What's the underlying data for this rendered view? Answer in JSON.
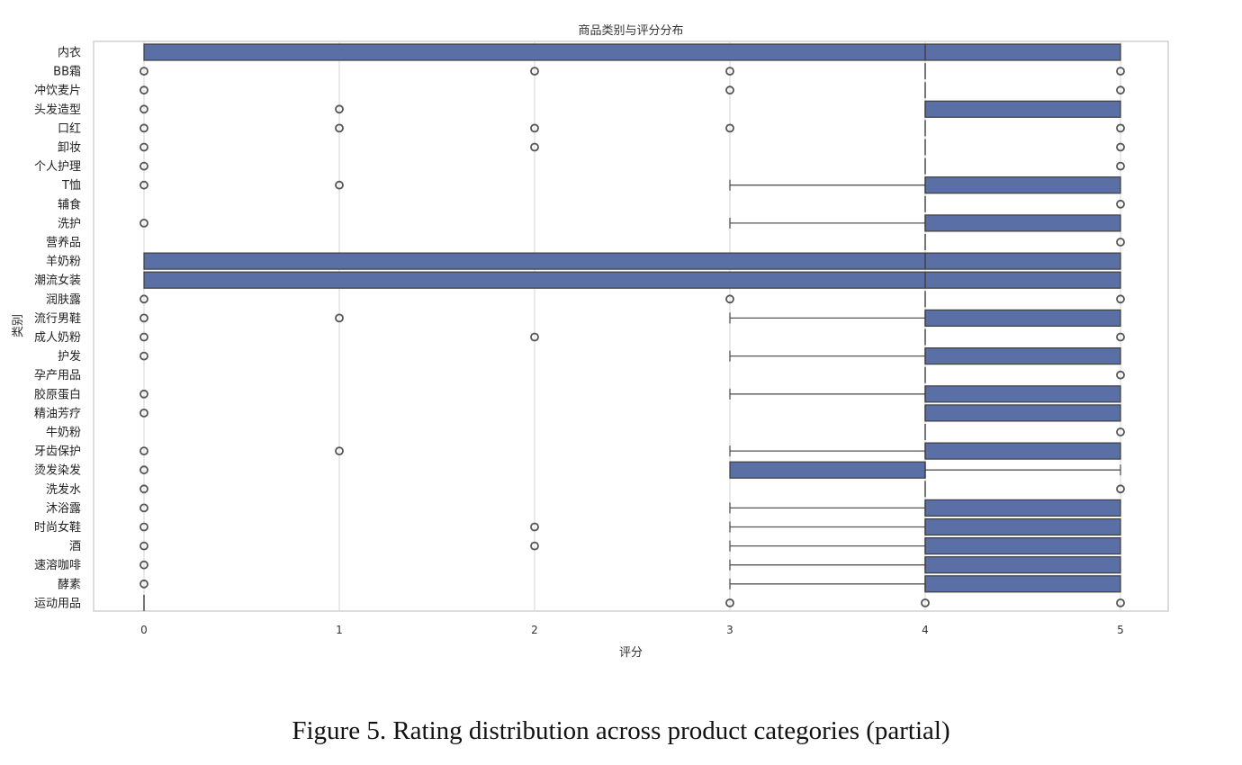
{
  "caption": "Figure 5. Rating distribution across product categories (partial)",
  "chart_data": {
    "type": "box",
    "orientation": "horizontal",
    "title": "商品类别与评分分布",
    "xlabel": "评分",
    "ylabel": "类别",
    "xlim": [
      -0.25,
      5.25
    ],
    "xticks": [
      0,
      1,
      2,
      3,
      4,
      5
    ],
    "grid": "vertical",
    "box_color": "#5a6fa6",
    "categories": [
      {
        "name": "内衣",
        "q1": 0,
        "median": 4,
        "q3": 5,
        "whisker_low": 0,
        "whisker_high": 5,
        "outliers": []
      },
      {
        "name": "BB霜",
        "q1": 4,
        "median": 4,
        "q3": 4,
        "whisker_low": 4,
        "whisker_high": 4,
        "outliers": [
          0,
          2,
          3,
          5
        ]
      },
      {
        "name": "冲饮麦片",
        "q1": 4,
        "median": 4,
        "q3": 4,
        "whisker_low": 4,
        "whisker_high": 4,
        "outliers": [
          0,
          3,
          5
        ]
      },
      {
        "name": "头发造型",
        "q1": 4,
        "median": 4,
        "q3": 5,
        "whisker_low": 4,
        "whisker_high": 5,
        "outliers": [
          0,
          1
        ]
      },
      {
        "name": "口红",
        "q1": 4,
        "median": 4,
        "q3": 4,
        "whisker_low": 4,
        "whisker_high": 4,
        "outliers": [
          0,
          1,
          2,
          3,
          5
        ]
      },
      {
        "name": "卸妆",
        "q1": 4,
        "median": 4,
        "q3": 4,
        "whisker_low": 4,
        "whisker_high": 4,
        "outliers": [
          0,
          2,
          5
        ]
      },
      {
        "name": "个人护理",
        "q1": 4,
        "median": 4,
        "q3": 4,
        "whisker_low": 4,
        "whisker_high": 4,
        "outliers": [
          0,
          5
        ]
      },
      {
        "name": "T恤",
        "q1": 4,
        "median": 4,
        "q3": 5,
        "whisker_low": 3,
        "whisker_high": 5,
        "outliers": [
          0,
          1
        ]
      },
      {
        "name": "辅食",
        "q1": 4,
        "median": 4,
        "q3": 4,
        "whisker_low": 4,
        "whisker_high": 4,
        "outliers": [
          5
        ]
      },
      {
        "name": "洗护",
        "q1": 4,
        "median": 4,
        "q3": 5,
        "whisker_low": 3,
        "whisker_high": 5,
        "outliers": [
          0
        ]
      },
      {
        "name": "营养品",
        "q1": 4,
        "median": 4,
        "q3": 4,
        "whisker_low": 4,
        "whisker_high": 4,
        "outliers": [
          5
        ]
      },
      {
        "name": "羊奶粉",
        "q1": 0,
        "median": 4,
        "q3": 5,
        "whisker_low": 0,
        "whisker_high": 5,
        "outliers": []
      },
      {
        "name": "潮流女装",
        "q1": 0,
        "median": 4,
        "q3": 5,
        "whisker_low": 0,
        "whisker_high": 5,
        "outliers": []
      },
      {
        "name": "润肤露",
        "q1": 4,
        "median": 4,
        "q3": 4,
        "whisker_low": 4,
        "whisker_high": 4,
        "outliers": [
          0,
          3,
          5
        ]
      },
      {
        "name": "流行男鞋",
        "q1": 4,
        "median": 4,
        "q3": 5,
        "whisker_low": 3,
        "whisker_high": 5,
        "outliers": [
          0,
          1
        ]
      },
      {
        "name": "成人奶粉",
        "q1": 4,
        "median": 4,
        "q3": 4,
        "whisker_low": 4,
        "whisker_high": 4,
        "outliers": [
          0,
          2,
          5
        ]
      },
      {
        "name": "护发",
        "q1": 4,
        "median": 4,
        "q3": 5,
        "whisker_low": 3,
        "whisker_high": 5,
        "outliers": [
          0
        ]
      },
      {
        "name": "孕产用品",
        "q1": 4,
        "median": 4,
        "q3": 4,
        "whisker_low": 4,
        "whisker_high": 4,
        "outliers": [
          5
        ]
      },
      {
        "name": "胶原蛋白",
        "q1": 4,
        "median": 4,
        "q3": 5,
        "whisker_low": 3,
        "whisker_high": 5,
        "outliers": [
          0
        ]
      },
      {
        "name": "精油芳疗",
        "q1": 4,
        "median": 4,
        "q3": 5,
        "whisker_low": 4,
        "whisker_high": 5,
        "outliers": [
          0
        ]
      },
      {
        "name": "牛奶粉",
        "q1": 4,
        "median": 4,
        "q3": 4,
        "whisker_low": 4,
        "whisker_high": 4,
        "outliers": [
          5
        ]
      },
      {
        "name": "牙齿保护",
        "q1": 4,
        "median": 4,
        "q3": 5,
        "whisker_low": 3,
        "whisker_high": 5,
        "outliers": [
          0,
          1
        ]
      },
      {
        "name": "烫发染发",
        "q1": 3,
        "median": 4,
        "q3": 4,
        "whisker_low": 3,
        "whisker_high": 5,
        "outliers": [
          0
        ]
      },
      {
        "name": "洗发水",
        "q1": 4,
        "median": 4,
        "q3": 4,
        "whisker_low": 4,
        "whisker_high": 4,
        "outliers": [
          0,
          5
        ]
      },
      {
        "name": "沐浴露",
        "q1": 4,
        "median": 4,
        "q3": 5,
        "whisker_low": 3,
        "whisker_high": 5,
        "outliers": [
          0
        ]
      },
      {
        "name": "时尚女鞋",
        "q1": 4,
        "median": 4,
        "q3": 5,
        "whisker_low": 3,
        "whisker_high": 5,
        "outliers": [
          0,
          2
        ]
      },
      {
        "name": "酒",
        "q1": 4,
        "median": 4,
        "q3": 5,
        "whisker_low": 3,
        "whisker_high": 5,
        "outliers": [
          0,
          2
        ]
      },
      {
        "name": "速溶咖啡",
        "q1": 4,
        "median": 4,
        "q3": 5,
        "whisker_low": 3,
        "whisker_high": 5,
        "outliers": [
          0
        ]
      },
      {
        "name": "酵素",
        "q1": 4,
        "median": 4,
        "q3": 5,
        "whisker_low": 3,
        "whisker_high": 5,
        "outliers": [
          0
        ]
      },
      {
        "name": "运动用品",
        "q1": 0,
        "median": 0,
        "q3": 0,
        "whisker_low": 0,
        "whisker_high": 0,
        "outliers": [
          3,
          4,
          5
        ]
      }
    ]
  }
}
